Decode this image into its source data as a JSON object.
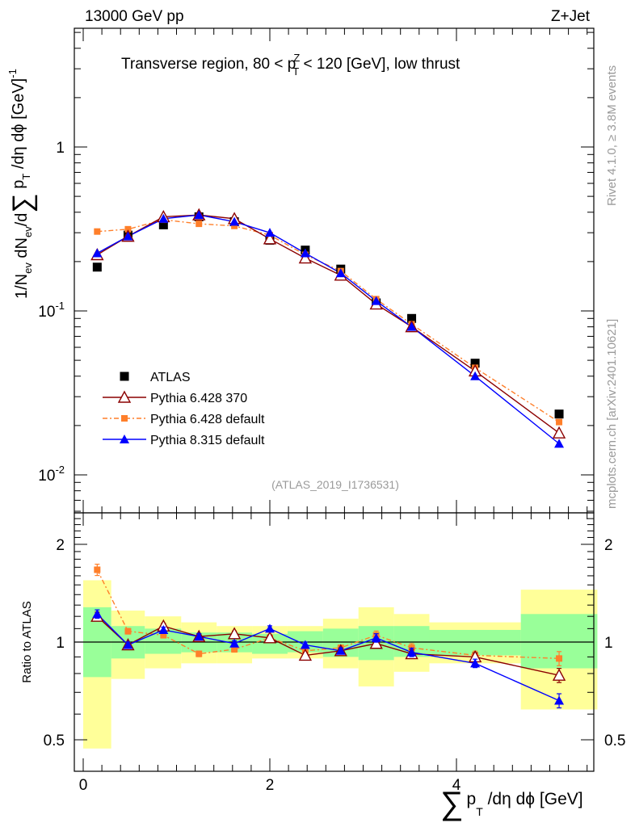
{
  "header": {
    "energy": "13000 GeV pp",
    "process": "Z+Jet",
    "region_prefix": "Transverse region, 80 < p",
    "region_sup": "Z",
    "region_sub": "T",
    "region_suffix": " < 120 [GeV], low thrust"
  },
  "side_labels": {
    "rivet": "Rivet 4.1.0, ≥ 3.8M events",
    "mcplots": "mcplots.cern.ch [arXiv:2401.10621]"
  },
  "analysis_id": "(ATLAS_2019_I1736531)",
  "axes": {
    "ylabel_main": "1/N_ev dN_ev/d∑p_T /dη dϕ [GeV]^-1",
    "ylabel_ratio": "Ratio to ATLAS",
    "xlabel": "∑ p_T /dη dϕ [GeV]",
    "ylabel_main_parts": {
      "a": "1/N",
      "a_sub": "ev",
      "b": " dN",
      "b_sub": "ev",
      "c": "/d",
      "sigma": "∑",
      "d": " p",
      "d_sub": "T",
      "e": " /dη dϕ  [GeV]",
      "e_sup": "-1"
    },
    "xlabel_parts": {
      "sigma": "∑",
      "p": "p",
      "p_sub": "T",
      "rest": " /dη dϕ [GeV]"
    },
    "main_yticks": [
      {
        "base": "10",
        "exp": "-2"
      },
      {
        "base": "10",
        "exp": "-1"
      },
      {
        "base": "1",
        "exp": ""
      }
    ],
    "ratio_yticks": [
      "0.5",
      "1",
      "2"
    ],
    "xticks": [
      "0",
      "2",
      "4"
    ]
  },
  "legend": [
    {
      "label": "ATLAS",
      "color": "#000000",
      "marker": "square"
    },
    {
      "label": "Pythia 6.428 370",
      "color": "#8b0000",
      "marker": "triangle-open"
    },
    {
      "label": "Pythia 6.428 default",
      "color": "#ff7f2a",
      "marker": "square-small"
    },
    {
      "label": "Pythia 8.315 default",
      "color": "#0000ff",
      "marker": "triangle"
    }
  ],
  "chart_data": {
    "type": "line",
    "title": "Transverse region, 80 < pT^Z < 120 [GeV], low thrust",
    "xlabel": "∑ pT /dη dϕ [GeV]",
    "ylabel": "1/Nev dNev/d∑pT /dη dϕ [GeV]^-1",
    "xlim": [
      -0.1,
      5.5
    ],
    "ylim": [
      0.006,
      5
    ],
    "yscale": "log",
    "x": [
      0.15,
      0.48,
      0.86,
      1.24,
      1.62,
      2.0,
      2.38,
      2.76,
      3.14,
      3.52,
      4.2,
      5.1
    ],
    "series": [
      {
        "name": "ATLAS",
        "values": [
          0.185,
          0.29,
          0.335,
          0.375,
          0.35,
          0.27,
          0.235,
          0.18,
          0.112,
          0.09,
          0.048,
          0.0235
        ]
      },
      {
        "name": "Pythia 6.428 370",
        "values": [
          0.22,
          0.285,
          0.375,
          0.385,
          0.365,
          0.275,
          0.21,
          0.165,
          0.11,
          0.08,
          0.043,
          0.018
        ]
      },
      {
        "name": "Pythia 6.428 default",
        "values": [
          0.305,
          0.315,
          0.36,
          0.34,
          0.33,
          0.29,
          0.22,
          0.175,
          0.118,
          0.083,
          0.045,
          0.021
        ]
      },
      {
        "name": "Pythia 8.315 default",
        "values": [
          0.225,
          0.285,
          0.365,
          0.385,
          0.35,
          0.3,
          0.225,
          0.17,
          0.115,
          0.08,
          0.04,
          0.0155
        ]
      }
    ],
    "ratio": {
      "ylabel": "Ratio to ATLAS",
      "ylim": [
        0.4,
        2.5
      ],
      "yscale": "log",
      "bin_edges": [
        0.0,
        0.3,
        0.66,
        1.05,
        1.43,
        1.81,
        2.19,
        2.57,
        2.95,
        3.33,
        3.71,
        4.69,
        5.51
      ],
      "band_stat": [
        [
          0.78,
          1.28
        ],
        [
          0.89,
          1.12
        ],
        [
          0.92,
          1.1
        ],
        [
          0.93,
          1.07
        ],
        [
          0.93,
          1.07
        ],
        [
          0.92,
          1.06
        ],
        [
          0.93,
          1.08
        ],
        [
          0.9,
          1.1
        ],
        [
          0.88,
          1.12
        ],
        [
          0.9,
          1.12
        ],
        [
          0.91,
          1.09
        ],
        [
          0.83,
          1.22
        ]
      ],
      "band_total": [
        [
          0.47,
          1.55
        ],
        [
          0.77,
          1.25
        ],
        [
          0.83,
          1.2
        ],
        [
          0.86,
          1.15
        ],
        [
          0.86,
          1.12
        ],
        [
          0.89,
          1.12
        ],
        [
          0.89,
          1.12
        ],
        [
          0.83,
          1.18
        ],
        [
          0.73,
          1.28
        ],
        [
          0.81,
          1.22
        ],
        [
          0.86,
          1.15
        ],
        [
          0.62,
          1.45
        ]
      ],
      "series": [
        {
          "name": "Pythia 6.428 370",
          "values": [
            1.2,
            0.98,
            1.12,
            1.04,
            1.06,
            1.03,
            0.91,
            0.94,
            0.99,
            0.92,
            0.9,
            0.79
          ]
        },
        {
          "name": "Pythia 6.428 default",
          "values": [
            1.67,
            1.08,
            1.05,
            0.92,
            0.95,
            1.03,
            0.94,
            0.96,
            1.05,
            0.96,
            0.91,
            0.89
          ]
        },
        {
          "name": "Pythia 8.315 default",
          "values": [
            1.22,
            0.98,
            1.09,
            1.04,
            0.99,
            1.1,
            0.98,
            0.94,
            1.03,
            0.93,
            0.86,
            0.66
          ]
        }
      ]
    }
  }
}
